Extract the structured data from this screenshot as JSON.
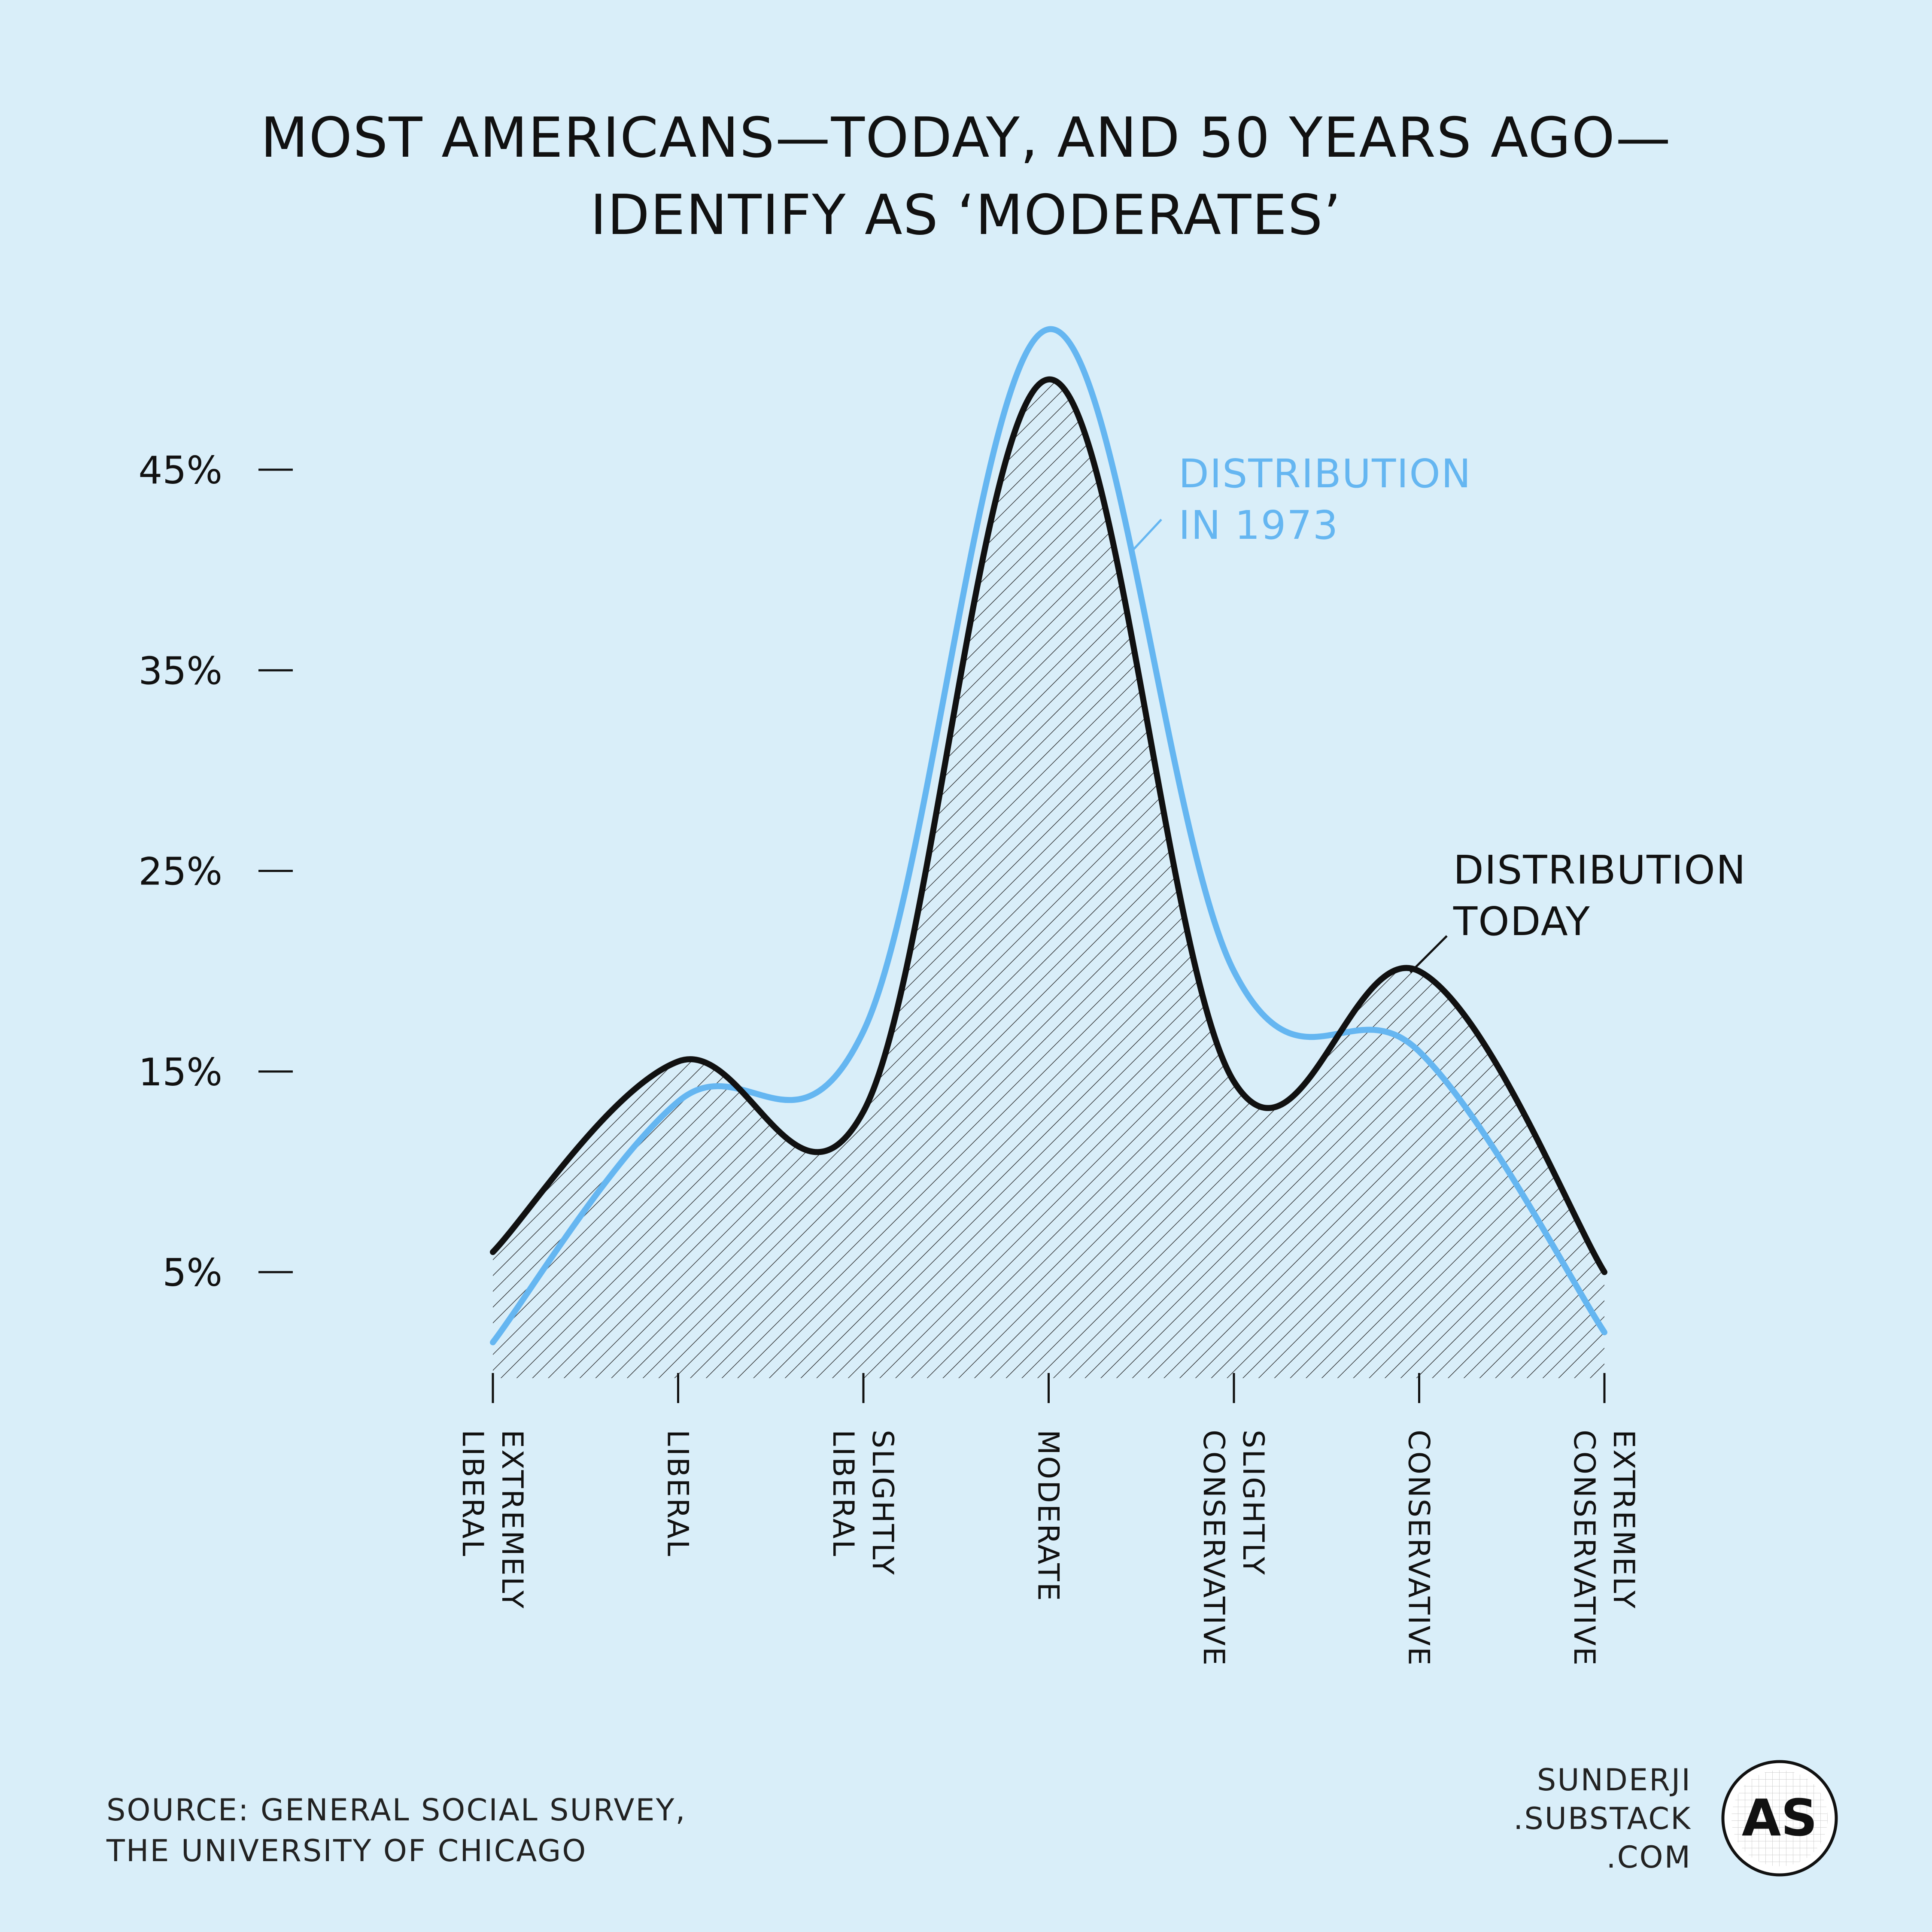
{
  "colors": {
    "background": "#d9eef9",
    "today": "#111111",
    "y1973": "#65b6f1",
    "hatch": "#222222"
  },
  "title_lines": [
    "MOST AMERICANS—TODAY, AND 50 YEARS AGO—",
    "IDENTIFY AS ‘MODERATES’"
  ],
  "chart_data": {
    "type": "line",
    "title": "MOST AMERICANS—TODAY, AND 50 YEARS AGO— IDENTIFY AS ‘MODERATES’",
    "xlabel": "",
    "ylabel": "",
    "categories": [
      [
        "EXTREMELY",
        "LIBERAL"
      ],
      [
        "LIBERAL"
      ],
      [
        "SLIGHTLY",
        "LIBERAL"
      ],
      [
        "MODERATE"
      ],
      [
        "SLIGHTLY",
        "CONSERVATIVE"
      ],
      [
        "CONSERVATIVE"
      ],
      [
        "EXTREMELY",
        "CONSERVATIVE"
      ]
    ],
    "yticks": [
      5,
      15,
      25,
      35,
      45
    ],
    "ytick_labels": [
      "5%",
      "15%",
      "25%",
      "35%",
      "45%"
    ],
    "ylim": [
      1,
      57
    ],
    "series": [
      {
        "name": "DISTRIBUTION IN 1973",
        "values": [
          1.5,
          13.5,
          17,
          52,
          20,
          16,
          2
        ],
        "style": "line"
      },
      {
        "name": "DISTRIBUTION TODAY",
        "values": [
          6,
          15.5,
          13,
          49.5,
          14.5,
          20,
          5
        ],
        "style": "line-hatched"
      }
    ],
    "annotations": [
      {
        "series": "DISTRIBUTION IN 1973",
        "lines": [
          "DISTRIBUTION",
          "IN 1973"
        ]
      },
      {
        "series": "DISTRIBUTION TODAY",
        "lines": [
          "DISTRIBUTION",
          "TODAY"
        ]
      }
    ]
  },
  "source_lines": [
    "SOURCE: GENERAL SOCIAL SURVEY,",
    "THE UNIVERSITY OF CHICAGO"
  ],
  "brand": {
    "lines": [
      "SUNDERJI",
      ".SUBSTACK",
      ".COM"
    ],
    "logo_text": "AS"
  }
}
